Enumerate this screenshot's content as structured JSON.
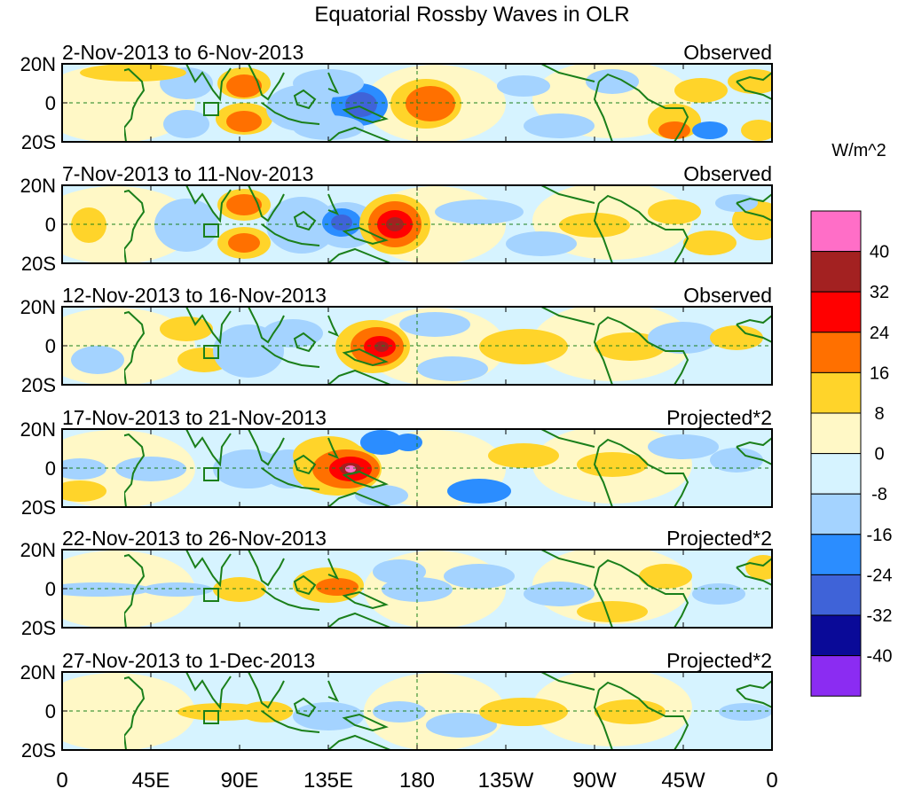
{
  "title": "Equatorial Rossby Waves in OLR",
  "y_labels": [
    "20N",
    "0",
    "20S"
  ],
  "x_labels": [
    "0",
    "45E",
    "90E",
    "135E",
    "180",
    "135W",
    "90W",
    "45W",
    "0"
  ],
  "panels": [
    {
      "date": "2-Nov-2013 to 6-Nov-2013",
      "kind": "Observed"
    },
    {
      "date": "7-Nov-2013 to 11-Nov-2013",
      "kind": "Observed"
    },
    {
      "date": "12-Nov-2013 to 16-Nov-2013",
      "kind": "Observed"
    },
    {
      "date": "17-Nov-2013 to 21-Nov-2013",
      "kind": "Projected*2"
    },
    {
      "date": "22-Nov-2013 to 26-Nov-2013",
      "kind": "Projected*2"
    },
    {
      "date": "27-Nov-2013 to 1-Dec-2013",
      "kind": "Projected*2"
    }
  ],
  "colorbar": {
    "units": "W/m^2",
    "labels": [
      "40",
      "32",
      "24",
      "16",
      "8",
      "0",
      "-8",
      "-16",
      "-24",
      "-32",
      "-40"
    ],
    "colors": [
      "#ff6ec7",
      "#a32121",
      "#ff0000",
      "#ff7000",
      "#ffd42a",
      "#fff8c6",
      "#d6f3ff",
      "#a4d3ff",
      "#2b8dff",
      "#3f63d8",
      "#0a0a98",
      "#8b2cf2"
    ]
  },
  "colors": {
    "land_outline": "#1a7f1a",
    "equator_line": "#1a7f1a",
    "neutral_pos": "#fff8c6",
    "neutral_neg": "#d6f3ff"
  }
}
